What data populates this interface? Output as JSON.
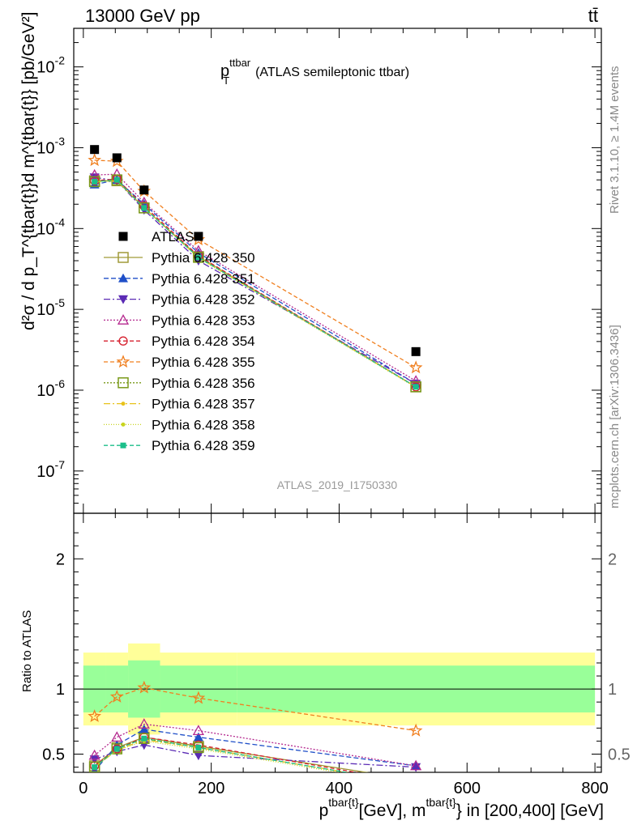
{
  "header": {
    "energy_label": "13000 GeV pp",
    "process_label": "tt̄"
  },
  "side_labels": {
    "rivet": "Rivet 3.1.10, ≥ 1.4M events",
    "mcplots": "mcplots.cern.ch [arXiv:1306.3436]"
  },
  "chart_data": {
    "type": "scatter",
    "title": "p_T^ttbar (ATLAS semileptonic ttbar)",
    "title_main": "p",
    "title_sub": "T",
    "title_sup": "ttbar",
    "title_rest": "(ATLAS semileptonic ttbar)",
    "analysis_id": "ATLAS_2019_I1750330",
    "xlabel": "p_T^{tbar{t}}[GeV], m^{tbar{t}} in [200,400] [GeV]",
    "xlabel_parts": {
      "p": "p",
      "T": "T",
      "sup1": "tbar{t}",
      "mid": "[GeV], m",
      "sup2": "tbar{t}",
      "end": "} in [200,400] [GeV]"
    },
    "ylabel_top": "d²σ / d p_T^{tbar{t}}d m^{tbar{t}} [pb/GeV²]",
    "ylabel_bottom": "Ratio to ATLAS",
    "xlim": [
      -15,
      810
    ],
    "x_ticks": [
      "0",
      "200",
      "400",
      "600",
      "800"
    ],
    "top_panel": {
      "yscale": "log",
      "ylim": [
        3e-08,
        0.03
      ],
      "y_ticks": [
        "10^-7",
        "10^-6",
        "10^-5",
        "10^-4",
        "10^-3",
        "10^-2"
      ]
    },
    "bottom_panel": {
      "ylim": [
        0.36,
        2.35
      ],
      "y_ticks": [
        "0.5",
        "1",
        "2"
      ],
      "band_bins": [
        {
          "x": [
            0,
            35
          ],
          "inner": [
            0.82,
            1.18
          ],
          "outer": [
            0.72,
            1.28
          ]
        },
        {
          "x": [
            35,
            70
          ],
          "inner": [
            0.82,
            1.18
          ],
          "outer": [
            0.72,
            1.28
          ]
        },
        {
          "x": [
            70,
            120
          ],
          "inner": [
            0.78,
            1.22
          ],
          "outer": [
            0.65,
            1.35
          ]
        },
        {
          "x": [
            120,
            240
          ],
          "inner": [
            0.82,
            1.18
          ],
          "outer": [
            0.72,
            1.28
          ]
        },
        {
          "x": [
            240,
            800
          ],
          "inner": [
            0.82,
            1.18
          ],
          "outer": [
            0.72,
            1.28
          ]
        }
      ]
    },
    "x": [
      17.5,
      52.5,
      95,
      180,
      520
    ],
    "atlas": [
      0.00095,
      0.00075,
      0.0003,
      8e-05,
      3e-06
    ],
    "series": [
      {
        "name": "Pythia 6.428 350",
        "color": "#a09a38",
        "marker": "square-open",
        "dash": "",
        "values": [
          0.00039,
          0.00039,
          0.00018,
          4.5e-05,
          1.1e-06
        ],
        "ratio": [
          0.41,
          0.55,
          0.63,
          0.56,
          0.3
        ]
      },
      {
        "name": "Pythia 6.428 351",
        "color": "#1f4fc8",
        "marker": "triangle-up",
        "dash": "6,3",
        "values": [
          0.00035,
          0.0004,
          0.0002,
          5e-05,
          1.2e-06
        ],
        "ratio": [
          0.37,
          0.57,
          0.69,
          0.63,
          0.41
        ]
      },
      {
        "name": "Pythia 6.428 352",
        "color": "#5b2bb5",
        "marker": "triangle-down",
        "dash": "8,3,2,3",
        "values": [
          0.00043,
          0.00039,
          0.00017,
          4e-05,
          1.2e-06
        ],
        "ratio": [
          0.46,
          0.52,
          0.57,
          0.49,
          0.4
        ]
      },
      {
        "name": "Pythia 6.428 353",
        "color": "#b5298f",
        "marker": "triangle-open",
        "dash": "2,2",
        "values": [
          0.00046,
          0.00047,
          0.00021,
          5.3e-05,
          1.3e-06
        ],
        "ratio": [
          0.49,
          0.63,
          0.73,
          0.68,
          0.41
        ]
      },
      {
        "name": "Pythia 6.428 354",
        "color": "#d6202e",
        "marker": "circle-open",
        "dash": "5,3",
        "values": [
          0.00039,
          0.00041,
          0.00019,
          4.6e-05,
          1.1e-06
        ],
        "ratio": [
          0.41,
          0.54,
          0.63,
          0.57,
          0.28
        ]
      },
      {
        "name": "Pythia 6.428 355",
        "color": "#f07f1f",
        "marker": "star-open",
        "dash": "5,3",
        "values": [
          0.0007,
          0.00068,
          0.00029,
          7.3e-05,
          1.9e-06
        ],
        "ratio": [
          0.79,
          0.94,
          1.01,
          0.93,
          0.68
        ]
      },
      {
        "name": "Pythia 6.428 356",
        "color": "#7a9a1a",
        "marker": "square-open",
        "dash": "2,2",
        "values": [
          0.00038,
          0.0004,
          0.00018,
          4.4e-05,
          1.1e-06
        ],
        "ratio": [
          0.4,
          0.54,
          0.62,
          0.55,
          0.27
        ]
      },
      {
        "name": "Pythia 6.428 357",
        "color": "#e8c21a",
        "marker": "dot",
        "dash": "8,3,2,3",
        "values": [
          0.00038,
          0.00039,
          0.00018,
          4.4e-05,
          1.1e-06
        ],
        "ratio": [
          0.4,
          0.53,
          0.61,
          0.55,
          0.27
        ]
      },
      {
        "name": "Pythia 6.428 358",
        "color": "#c8d41e",
        "marker": "dot",
        "dash": "1,2",
        "values": [
          0.00038,
          0.00039,
          0.00018,
          4.3e-05,
          1.08e-06
        ],
        "ratio": [
          0.4,
          0.53,
          0.6,
          0.54,
          0.26
        ]
      },
      {
        "name": "Pythia 6.428 359",
        "color": "#1bbf8a",
        "marker": "square",
        "dash": "5,3",
        "values": [
          0.00038,
          0.0004,
          0.00018,
          4.4e-05,
          1.1e-06
        ],
        "ratio": [
          0.4,
          0.54,
          0.62,
          0.55,
          0.27
        ]
      }
    ],
    "legend": {
      "atlas_label": "ATLAS",
      "placement": "center-left"
    }
  }
}
